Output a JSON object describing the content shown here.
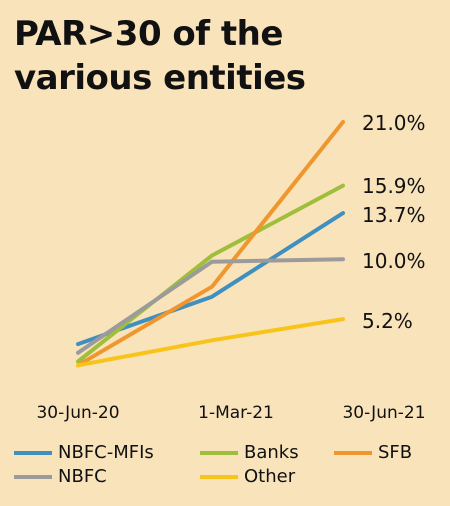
{
  "title_lines": [
    "PAR>30 of the",
    "various entities"
  ],
  "chart_data": {
    "type": "line",
    "title": "PAR>30 of the various entities",
    "x": [
      "30-Jun-20",
      "1-Mar-21",
      "30-Jun-21"
    ],
    "series": [
      {
        "name": "NBFC-MFIs",
        "values": [
          3.2,
          7.0,
          13.7
        ],
        "end_label": "13.7%",
        "color": "#3f8fbf"
      },
      {
        "name": "Banks",
        "values": [
          1.8,
          10.3,
          15.9
        ],
        "end_label": "15.9%",
        "color": "#9fbf3b"
      },
      {
        "name": "SFB",
        "values": [
          1.5,
          7.8,
          21.0
        ],
        "end_label": "21.0%",
        "color": "#f0962e"
      },
      {
        "name": "NBFC",
        "values": [
          2.5,
          9.8,
          10.0
        ],
        "end_label": "10.0%",
        "color": "#9b9b9b"
      },
      {
        "name": "Other",
        "values": [
          1.5,
          3.5,
          5.2
        ],
        "end_label": "5.2%",
        "color": "#f8c41a"
      }
    ]
  }
}
